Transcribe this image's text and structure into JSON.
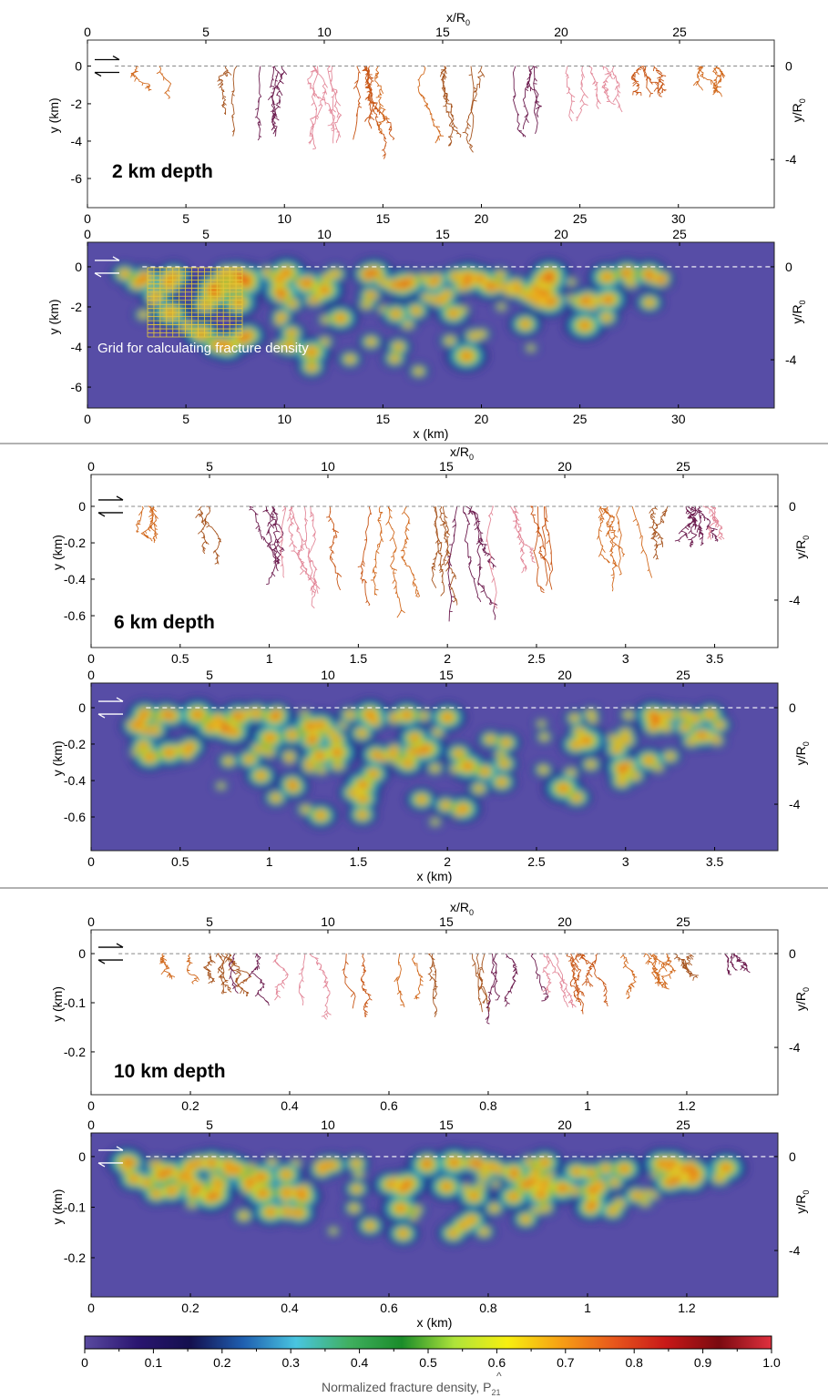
{
  "chart_data": [
    {
      "type": "scatter",
      "name": "2 km fractures",
      "xlabel": "",
      "ylabel": "y (km)",
      "top_axis_label": "x/R0",
      "right_axis_label": "y/R0",
      "xlim": [
        0,
        35
      ],
      "ylim": [
        -7,
        1
      ],
      "annotation": "2 km depth"
    },
    {
      "type": "heatmap",
      "name": "2 km density",
      "xlabel": "x (km)",
      "ylabel": "y (km)",
      "top_axis_label": "x/R0",
      "right_axis_label": "y/R0",
      "xlim": [
        0,
        35
      ],
      "ylim": [
        -7,
        1
      ],
      "annotation": "Grid for calculating fracture density"
    },
    {
      "type": "scatter",
      "name": "6 km fractures",
      "xlabel": "",
      "ylabel": "y (km)",
      "top_axis_label": "x/R0",
      "right_axis_label": "y/R0",
      "xlim": [
        0,
        3.85
      ],
      "ylim": [
        -0.8,
        0.1
      ],
      "annotation": "6 km depth"
    },
    {
      "type": "heatmap",
      "name": "6 km density",
      "xlabel": "x (km)",
      "ylabel": "y (km)",
      "top_axis_label": "x/R0",
      "right_axis_label": "y/R0",
      "xlim": [
        0,
        3.85
      ],
      "ylim": [
        -0.8,
        0.1
      ]
    },
    {
      "type": "scatter",
      "name": "10 km fractures",
      "xlabel": "",
      "ylabel": "y (km)",
      "top_axis_label": "x/R0",
      "right_axis_label": "y/R0",
      "xlim": [
        0,
        1.38
      ],
      "ylim": [
        -0.29,
        0.02
      ],
      "annotation": "10 km depth"
    },
    {
      "type": "heatmap",
      "name": "10 km density",
      "xlabel": "x (km)",
      "ylabel": "y (km)",
      "top_axis_label": "x/R0",
      "right_axis_label": "y/R0",
      "xlim": [
        0,
        1.38
      ],
      "ylim": [
        -0.29,
        0.02
      ]
    }
  ],
  "panels": [
    {
      "kind": "frac",
      "box": [
        96,
        44,
        850,
        228
      ],
      "xt": [
        {
          "v": "0",
          "p": 0
        },
        {
          "v": "5",
          "p": 0.1434
        },
        {
          "v": "10",
          "p": 0.2868
        },
        {
          "v": "15",
          "p": 0.4302
        },
        {
          "v": "20",
          "p": 0.5736
        },
        {
          "v": "25",
          "p": 0.717
        },
        {
          "v": "30",
          "p": 0.8604
        }
      ],
      "tt": [
        {
          "v": "0",
          "p": 0
        },
        {
          "v": "5",
          "p": 0.1724
        },
        {
          "v": "10",
          "p": 0.3448
        },
        {
          "v": "15",
          "p": 0.5172
        },
        {
          "v": "20",
          "p": 0.6897
        },
        {
          "v": "25",
          "p": 0.8621
        }
      ],
      "yt": [
        {
          "v": "0",
          "p": 0.155
        },
        {
          "v": "-2",
          "p": 0.38
        },
        {
          "v": "-4",
          "p": 0.603
        },
        {
          "v": "-6",
          "p": 0.826
        }
      ],
      "rt": [
        {
          "v": "0",
          "p": 0.155
        },
        {
          "v": "-4",
          "p": 0.713
        }
      ],
      "xlabel": "",
      "seed": 11,
      "depth": 0.62,
      "end": 0.84
    },
    {
      "kind": "heat",
      "box": [
        96,
        266,
        850,
        448
      ],
      "xt": [
        {
          "v": "0",
          "p": 0
        },
        {
          "v": "5",
          "p": 0.1434
        },
        {
          "v": "10",
          "p": 0.2868
        },
        {
          "v": "15",
          "p": 0.4302
        },
        {
          "v": "20",
          "p": 0.5736
        },
        {
          "v": "25",
          "p": 0.717
        },
        {
          "v": "30",
          "p": 0.8604
        }
      ],
      "tt": [
        {
          "v": "0",
          "p": 0
        },
        {
          "v": "5",
          "p": 0.1724
        },
        {
          "v": "10",
          "p": 0.3448
        },
        {
          "v": "15",
          "p": 0.5172
        },
        {
          "v": "20",
          "p": 0.6897
        },
        {
          "v": "25",
          "p": 0.8621
        }
      ],
      "yt": [
        {
          "v": "0",
          "p": 0.148
        },
        {
          "v": "-2",
          "p": 0.39
        },
        {
          "v": "-4",
          "p": 0.632
        },
        {
          "v": "-6",
          "p": 0.874
        }
      ],
      "rt": [
        {
          "v": "0",
          "p": 0.148
        },
        {
          "v": "-4",
          "p": 0.709
        }
      ],
      "xlabel": "x (km)",
      "seed": 12,
      "depth": 0.62,
      "end": 0.84,
      "grid": true
    },
    {
      "kind": "frac",
      "box": [
        100,
        521,
        854,
        711
      ],
      "xt": [
        {
          "v": "0",
          "p": 0
        },
        {
          "v": "0.5",
          "p": 0.1297
        },
        {
          "v": "1",
          "p": 0.2594
        },
        {
          "v": "1.5",
          "p": 0.3891
        },
        {
          "v": "2",
          "p": 0.5188
        },
        {
          "v": "2.5",
          "p": 0.6485
        },
        {
          "v": "3",
          "p": 0.7782
        },
        {
          "v": "3.5",
          "p": 0.9079
        }
      ],
      "tt": [
        {
          "v": "0",
          "p": 0
        },
        {
          "v": "5",
          "p": 0.1724
        },
        {
          "v": "10",
          "p": 0.3448
        },
        {
          "v": "15",
          "p": 0.5172
        },
        {
          "v": "20",
          "p": 0.6897
        },
        {
          "v": "25",
          "p": 0.8621
        }
      ],
      "yt": [
        {
          "v": "0",
          "p": 0.184
        },
        {
          "v": "-0.2",
          "p": 0.395
        },
        {
          "v": "-0.4",
          "p": 0.605
        },
        {
          "v": "-0.6",
          "p": 0.816
        }
      ],
      "rt": [
        {
          "v": "0",
          "p": 0.184
        },
        {
          "v": "-4",
          "p": 0.726
        }
      ],
      "xlabel": "",
      "seed": 21,
      "depth": 0.7,
      "end": 0.92
    },
    {
      "kind": "heat",
      "box": [
        100,
        750,
        854,
        934
      ],
      "xt": [
        {
          "v": "0",
          "p": 0
        },
        {
          "v": "0.5",
          "p": 0.1297
        },
        {
          "v": "1",
          "p": 0.2594
        },
        {
          "v": "1.5",
          "p": 0.3891
        },
        {
          "v": "2",
          "p": 0.5188
        },
        {
          "v": "2.5",
          "p": 0.6485
        },
        {
          "v": "3",
          "p": 0.7782
        },
        {
          "v": "3.5",
          "p": 0.9079
        }
      ],
      "tt": [
        {
          "v": "0",
          "p": 0
        },
        {
          "v": "5",
          "p": 0.1724
        },
        {
          "v": "10",
          "p": 0.3448
        },
        {
          "v": "15",
          "p": 0.5172
        },
        {
          "v": "20",
          "p": 0.6897
        },
        {
          "v": "25",
          "p": 0.8621
        }
      ],
      "yt": [
        {
          "v": "0",
          "p": 0.147
        },
        {
          "v": "-0.2",
          "p": 0.364
        },
        {
          "v": "-0.4",
          "p": 0.582
        },
        {
          "v": "-0.6",
          "p": 0.799
        }
      ],
      "rt": [
        {
          "v": "0",
          "p": 0.147
        },
        {
          "v": "-4",
          "p": 0.723
        }
      ],
      "xlabel": "x (km)",
      "seed": 22,
      "depth": 0.7,
      "end": 0.92
    },
    {
      "kind": "frac",
      "box": [
        100,
        1021,
        854,
        1202
      ],
      "xt": [
        {
          "v": "0",
          "p": 0
        },
        {
          "v": "0.2",
          "p": 0.1446
        },
        {
          "v": "0.4",
          "p": 0.2891
        },
        {
          "v": "0.6",
          "p": 0.4337
        },
        {
          "v": "0.8",
          "p": 0.5782
        },
        {
          "v": "1",
          "p": 0.7228
        },
        {
          "v": "1.2",
          "p": 0.8673
        }
      ],
      "tt": [
        {
          "v": "0",
          "p": 0
        },
        {
          "v": "5",
          "p": 0.1724
        },
        {
          "v": "10",
          "p": 0.3448
        },
        {
          "v": "15",
          "p": 0.5172
        },
        {
          "v": "20",
          "p": 0.6897
        },
        {
          "v": "25",
          "p": 0.8621
        }
      ],
      "yt": [
        {
          "v": "0",
          "p": 0.144
        },
        {
          "v": "-0.1",
          "p": 0.442
        },
        {
          "v": "-0.2",
          "p": 0.74
        }
      ],
      "rt": [
        {
          "v": "0",
          "p": 0.144
        },
        {
          "v": "-4",
          "p": 0.713
        }
      ],
      "xlabel": "",
      "seed": 31,
      "depth": 0.46,
      "end": 0.93
    },
    {
      "kind": "heat",
      "box": [
        100,
        1244,
        854,
        1424
      ],
      "xt": [
        {
          "v": "0",
          "p": 0
        },
        {
          "v": "0.2",
          "p": 0.1446
        },
        {
          "v": "0.4",
          "p": 0.2891
        },
        {
          "v": "0.6",
          "p": 0.4337
        },
        {
          "v": "0.8",
          "p": 0.5782
        },
        {
          "v": "1",
          "p": 0.7228
        },
        {
          "v": "1.2",
          "p": 0.8673
        }
      ],
      "tt": [
        {
          "v": "0",
          "p": 0
        },
        {
          "v": "5",
          "p": 0.1724
        },
        {
          "v": "10",
          "p": 0.3448
        },
        {
          "v": "15",
          "p": 0.5172
        },
        {
          "v": "20",
          "p": 0.6897
        },
        {
          "v": "25",
          "p": 0.8621
        }
      ],
      "yt": [
        {
          "v": "0",
          "p": 0.144
        },
        {
          "v": "-0.1",
          "p": 0.453
        },
        {
          "v": "-0.2",
          "p": 0.761
        }
      ],
      "rt": [
        {
          "v": "0",
          "p": 0.144
        },
        {
          "v": "-4",
          "p": 0.717
        }
      ],
      "xlabel": "x (km)",
      "seed": 32,
      "depth": 0.46,
      "end": 0.93
    }
  ],
  "labels": {
    "top_axis_x": "x/R",
    "top_axis_sub": "0",
    "right_axis": "y/R",
    "right_axis_sub": "0",
    "left_axis": "y (km)",
    "depth_2": "2 km depth",
    "depth_6": "6 km depth",
    "depth_10": "10 km depth",
    "grid_note": "Grid for calculating fracture density"
  },
  "colorbar": {
    "title": "Normalized fracture density, ",
    "symbol": "P",
    "symbol_sub": "21",
    "ticks": [
      "0",
      "0.1",
      "0.2",
      "0.3",
      "0.4",
      "0.5",
      "0.6",
      "0.7",
      "0.8",
      "0.9",
      "1.0"
    ],
    "stops": [
      "#5a4aa0",
      "#2a1570",
      "#14104e",
      "#1f5fb0",
      "#49c5e0",
      "#40b060",
      "#1a8c2a",
      "#aee43a",
      "#f7ef10",
      "#f7a015",
      "#e8581c",
      "#c81818",
      "#7a0a10",
      "#e0303e"
    ]
  },
  "colors": {
    "fracture_palette": [
      "#d26a1e",
      "#a6541e",
      "#6b1a4d",
      "#e3899a",
      "#c85514"
    ],
    "heat_background": "#574da6",
    "separator": "#666666"
  }
}
